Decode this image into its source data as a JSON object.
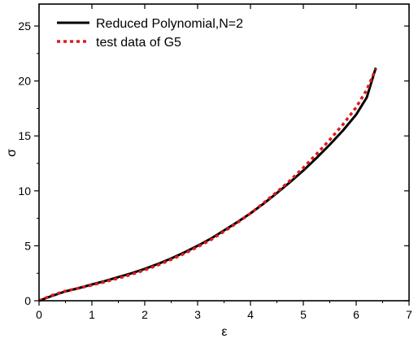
{
  "chart_data": {
    "type": "line",
    "xlabel": "ε",
    "ylabel": "σ",
    "xlim": [
      0,
      7
    ],
    "ylim": [
      0,
      27
    ],
    "x_ticks": [
      0,
      1,
      2,
      3,
      4,
      5,
      6,
      7
    ],
    "y_ticks": [
      0,
      5,
      10,
      15,
      20,
      25
    ],
    "grid": false,
    "legend_position": "top-left",
    "series": [
      {
        "name": "Reduced Polynomial,N=2",
        "style": "solid",
        "color": "#000000",
        "x": [
          0,
          0.25,
          0.5,
          0.75,
          1.0,
          1.25,
          1.5,
          1.75,
          2.0,
          2.25,
          2.5,
          2.75,
          3.0,
          3.25,
          3.5,
          3.75,
          4.0,
          4.25,
          4.5,
          4.75,
          5.0,
          5.25,
          5.5,
          5.75,
          6.0,
          6.2,
          6.37
        ],
        "y": [
          0,
          0.45,
          0.85,
          1.15,
          1.48,
          1.8,
          2.15,
          2.5,
          2.9,
          3.35,
          3.85,
          4.4,
          5.0,
          5.65,
          6.4,
          7.15,
          7.95,
          8.85,
          9.8,
          10.8,
          11.85,
          13.0,
          14.2,
          15.5,
          16.95,
          18.5,
          21.2
        ]
      },
      {
        "name": "test data of G5",
        "style": "dotted",
        "color": "#e0191b",
        "x": [
          0,
          0.25,
          0.5,
          0.75,
          1.0,
          1.25,
          1.5,
          1.75,
          2.0,
          2.25,
          2.5,
          2.75,
          3.0,
          3.25,
          3.5,
          3.75,
          4.0,
          4.25,
          4.5,
          4.75,
          5.0,
          5.25,
          5.5,
          5.75,
          6.0,
          6.2,
          6.37
        ],
        "y": [
          0,
          0.5,
          0.88,
          1.15,
          1.42,
          1.72,
          2.05,
          2.4,
          2.8,
          3.25,
          3.75,
          4.3,
          4.9,
          5.55,
          6.3,
          7.1,
          7.95,
          8.9,
          9.9,
          10.95,
          12.1,
          13.35,
          14.65,
          16.05,
          17.6,
          19.2,
          21.1
        ]
      }
    ]
  }
}
